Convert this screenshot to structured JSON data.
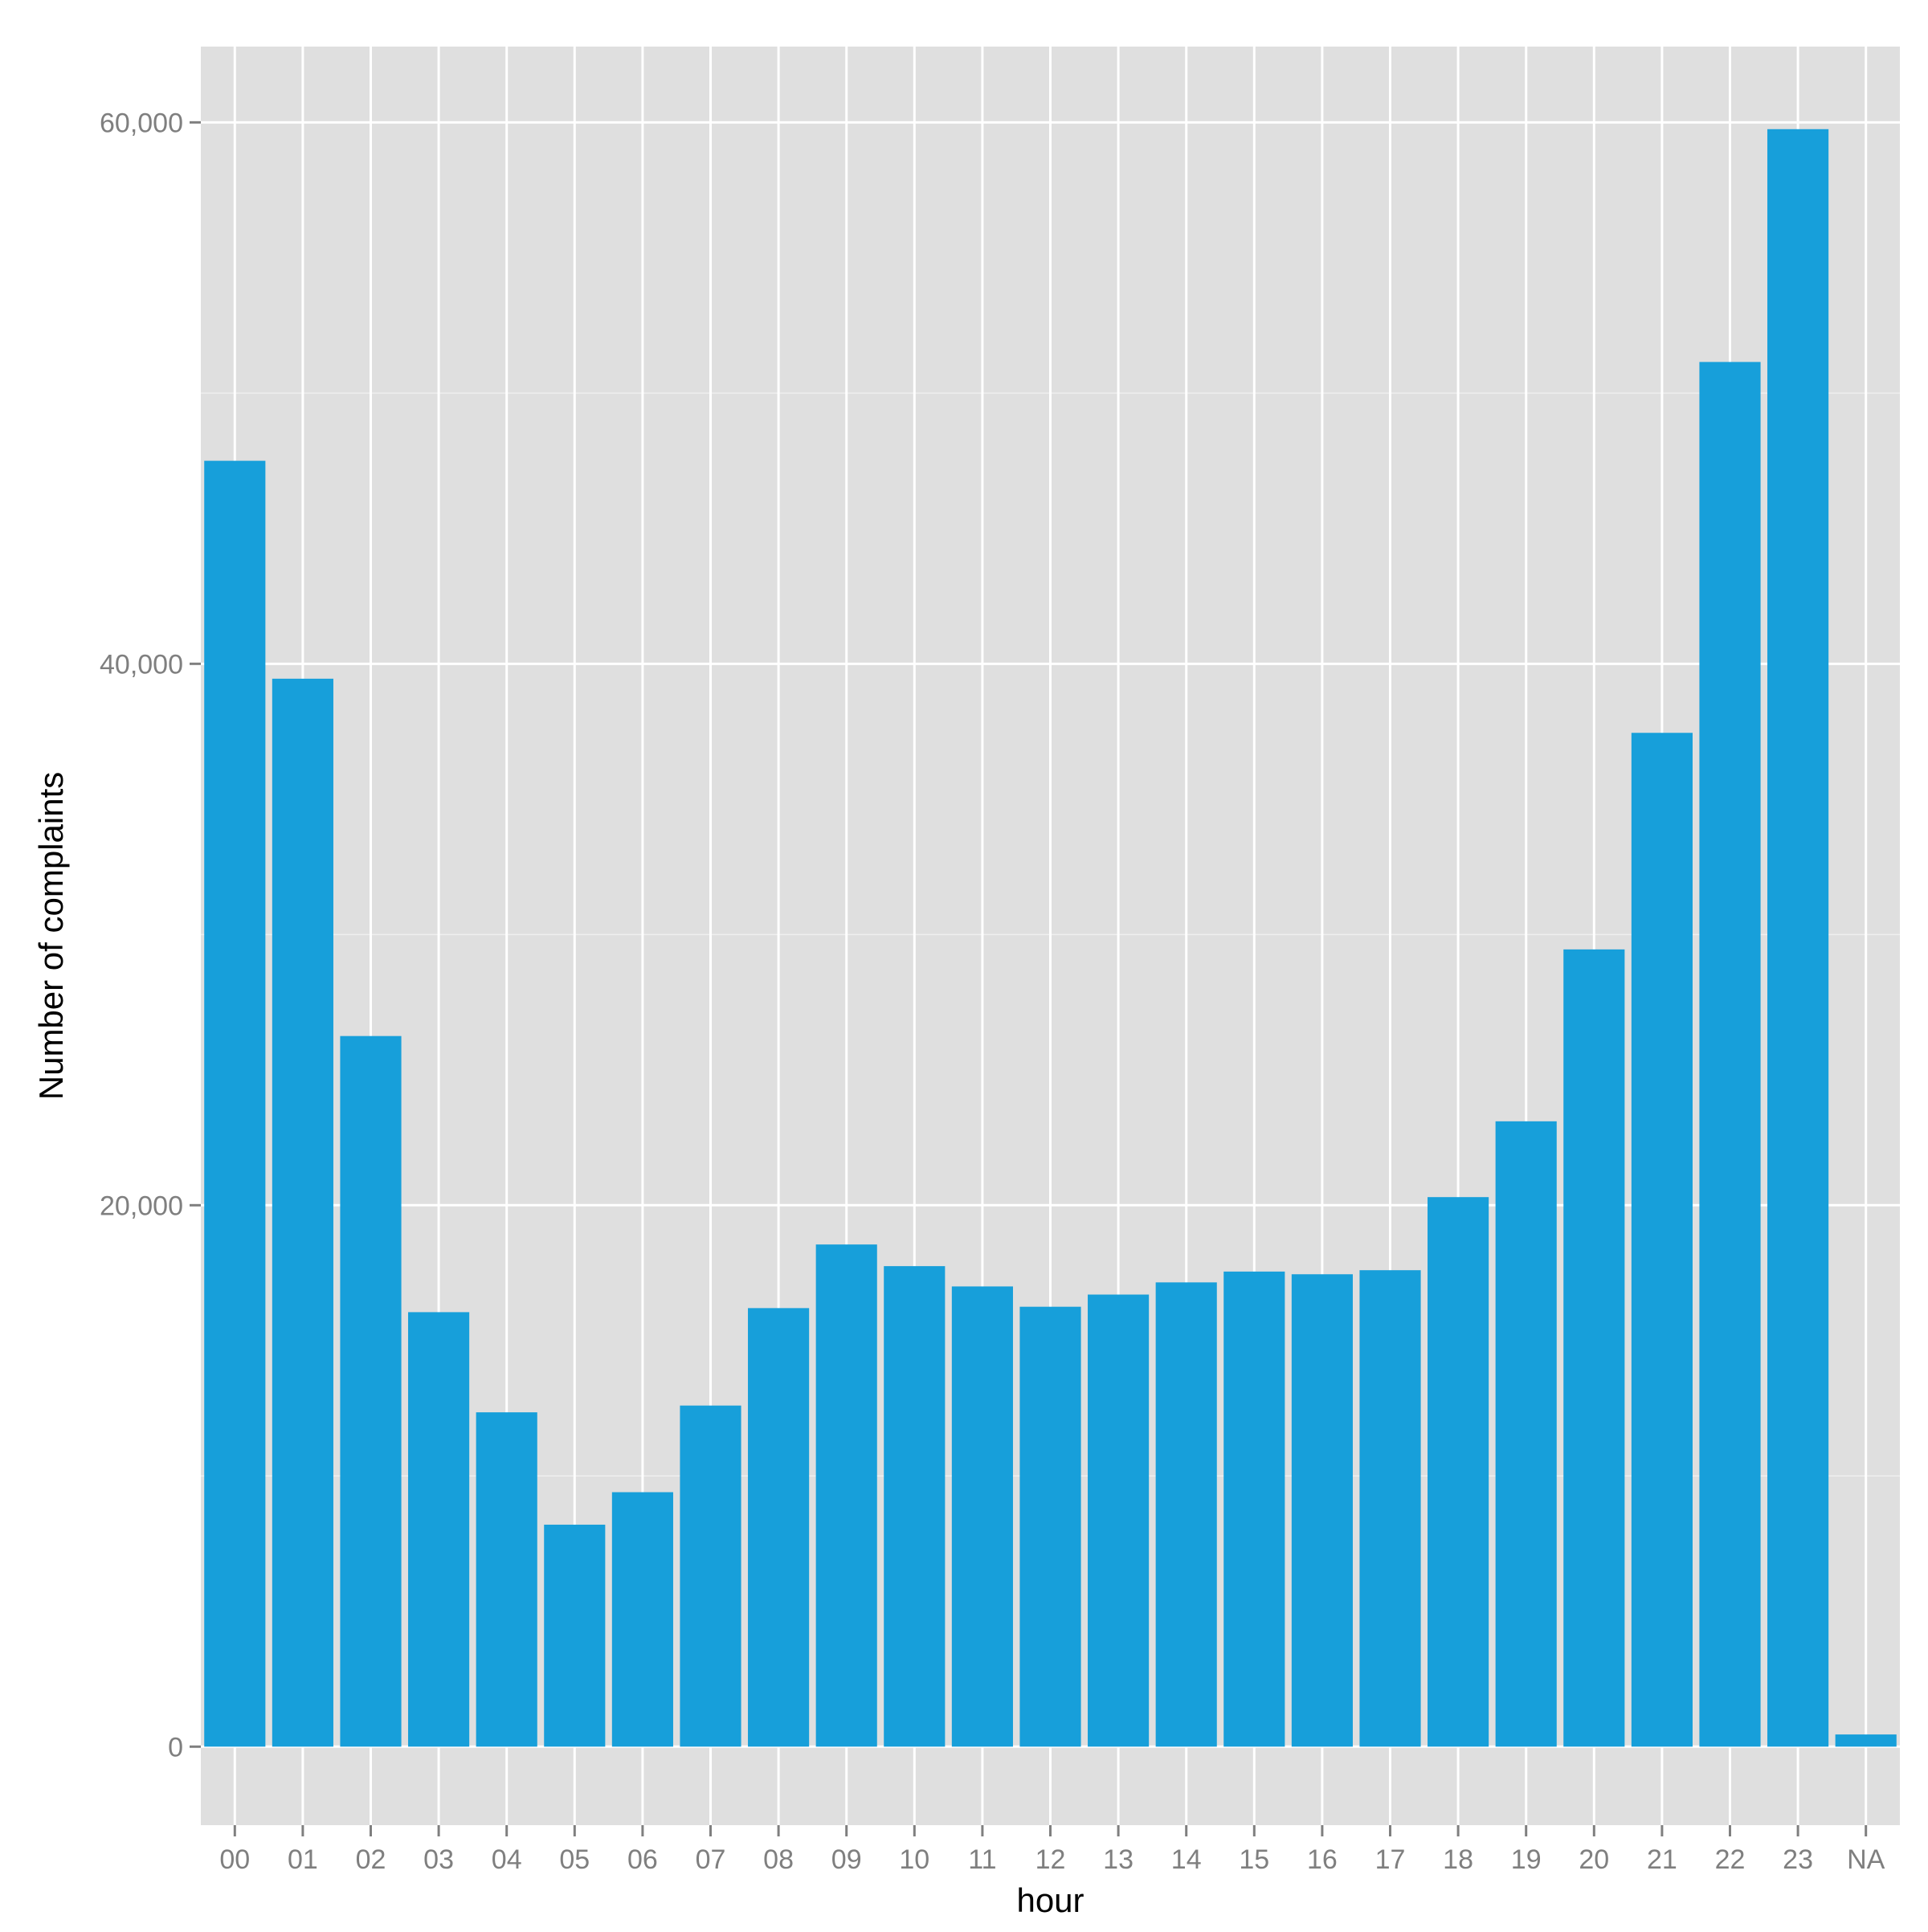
{
  "chart_data": {
    "type": "bar",
    "title": "",
    "xlabel": "hour",
    "ylabel": "Number of complaints",
    "categories": [
      "00",
      "01",
      "02",
      "03",
      "04",
      "05",
      "06",
      "07",
      "08",
      "09",
      "10",
      "11",
      "12",
      "13",
      "14",
      "15",
      "16",
      "17",
      "18",
      "19",
      "20",
      "21",
      "22",
      "23",
      "NA"
    ],
    "values": [
      47500,
      39450,
      26250,
      16050,
      12350,
      8200,
      9400,
      12600,
      16200,
      18550,
      17750,
      17000,
      16250,
      16700,
      17150,
      17550,
      17450,
      17600,
      20300,
      23100,
      29450,
      37450,
      51150,
      59750,
      450
    ],
    "ylim": [
      -2900,
      62800
    ],
    "yticks": [
      0,
      20000,
      40000,
      60000
    ],
    "ytick_labels": [
      "0",
      "20,000",
      "40,000",
      "60,000"
    ],
    "grid": true,
    "legend": "none"
  },
  "colors": {
    "bar": "#179FDA",
    "panel_background": "#DFDFDF",
    "grid_major": "#FFFFFF",
    "grid_minor": "#EFEFEF",
    "tick_label": "#7F7F7F",
    "axis_title": "#000000",
    "tick_mark": "#7F7F7F"
  }
}
